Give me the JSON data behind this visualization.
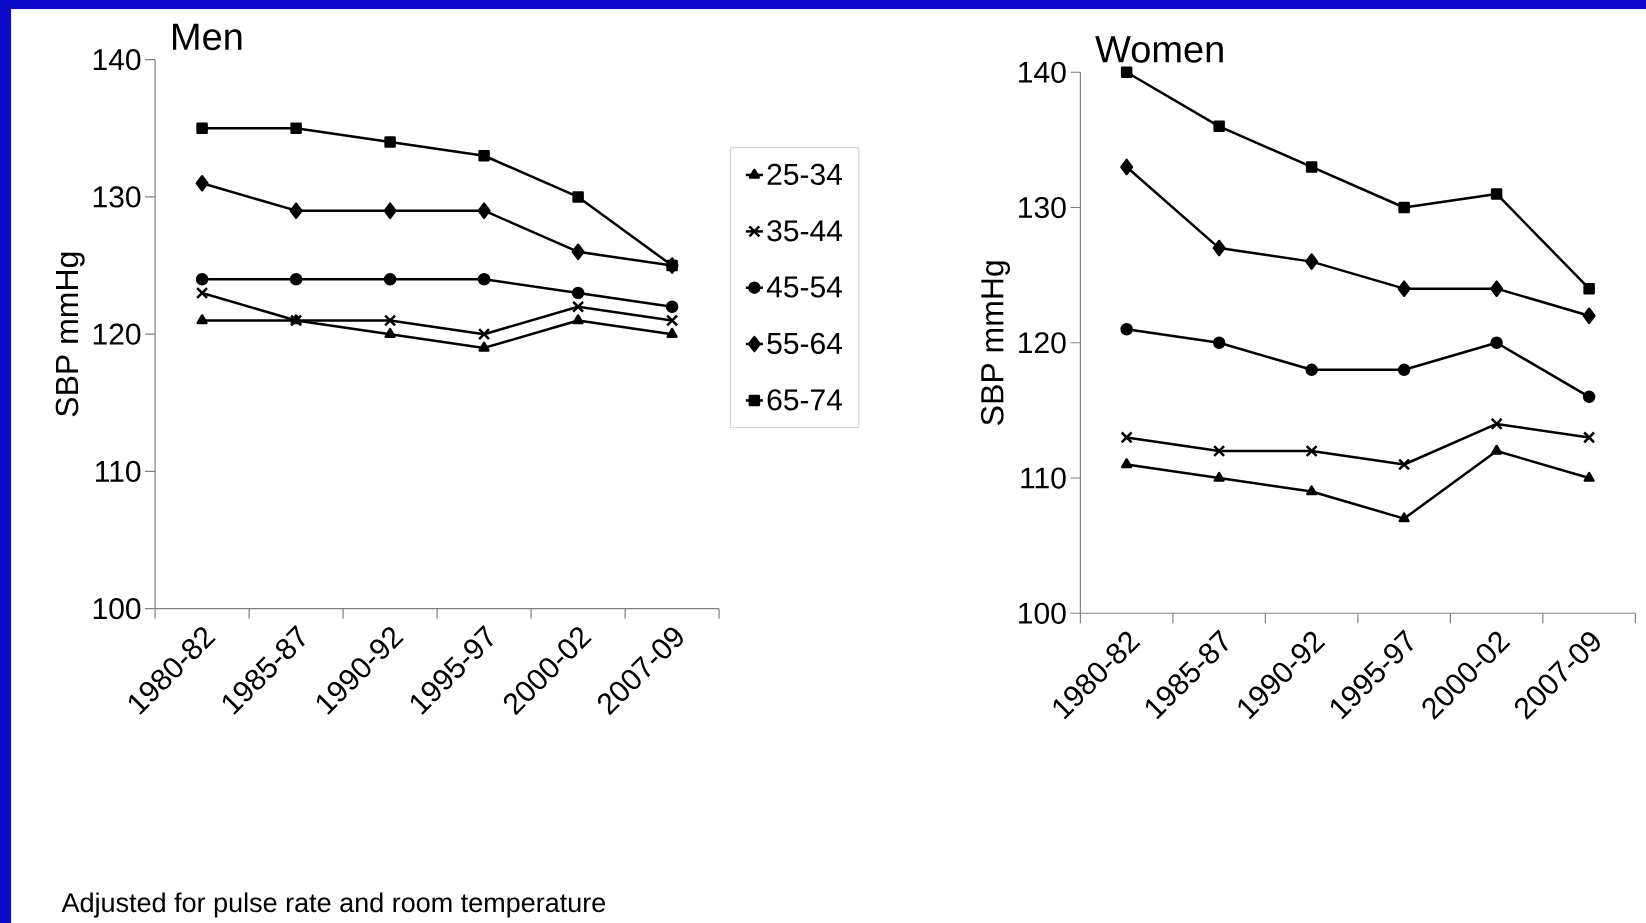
{
  "chart_data": [
    {
      "type": "line",
      "title": "Men",
      "ylabel": "SBP mmHg",
      "categories": [
        "1980-82",
        "1985-87",
        "1990-92",
        "1995-97",
        "2000-02",
        "2007-09"
      ],
      "ylim": [
        100,
        140
      ],
      "yticks": [
        100,
        110,
        120,
        130,
        140
      ],
      "legend": "right",
      "grid": false,
      "line_style": "solid",
      "annotations": [
        "Adjusted for pulse rate and room temperature"
      ],
      "series": [
        {
          "name": "25-34",
          "color": "#000000",
          "marker": "triangle",
          "values": [
            121,
            121,
            120,
            119,
            121,
            120
          ]
        },
        {
          "name": "35-44",
          "color": "#000000",
          "marker": "cross",
          "values": [
            123,
            121,
            121,
            120,
            122,
            121
          ]
        },
        {
          "name": "45-54",
          "color": "#000000",
          "marker": "circle",
          "values": [
            124,
            124,
            124,
            124,
            123,
            122
          ]
        },
        {
          "name": "55-64",
          "color": "#000000",
          "marker": "diamond",
          "values": [
            131,
            129,
            129,
            129,
            126,
            125
          ]
        },
        {
          "name": "65-74",
          "color": "#000000",
          "marker": "square",
          "values": [
            135,
            135,
            134,
            133,
            130,
            125
          ]
        }
      ]
    },
    {
      "type": "line",
      "title": "Women",
      "ylabel": "SBP mmHg",
      "categories": [
        "1980-82",
        "1985-87",
        "1990-92",
        "1995-97",
        "2000-02",
        "2007-09"
      ],
      "ylim": [
        100,
        140
      ],
      "yticks": [
        100,
        110,
        120,
        130,
        140
      ],
      "grid": false,
      "line_style": "solid",
      "series": [
        {
          "color": "#000000",
          "marker": "triangle",
          "values": [
            111,
            110,
            109,
            107,
            112,
            110
          ]
        },
        {
          "color": "#000000",
          "marker": "cross",
          "values": [
            113,
            112,
            112,
            111,
            114,
            113
          ]
        },
        {
          "color": "#000000",
          "marker": "circle",
          "values": [
            121,
            120,
            118,
            118,
            120,
            116
          ]
        },
        {
          "color": "#000000",
          "marker": "diamond",
          "values": [
            133,
            127,
            126,
            124,
            124,
            122
          ]
        },
        {
          "color": "#000000",
          "marker": "square",
          "values": [
            140,
            136,
            133,
            130,
            131,
            124
          ]
        }
      ]
    }
  ]
}
